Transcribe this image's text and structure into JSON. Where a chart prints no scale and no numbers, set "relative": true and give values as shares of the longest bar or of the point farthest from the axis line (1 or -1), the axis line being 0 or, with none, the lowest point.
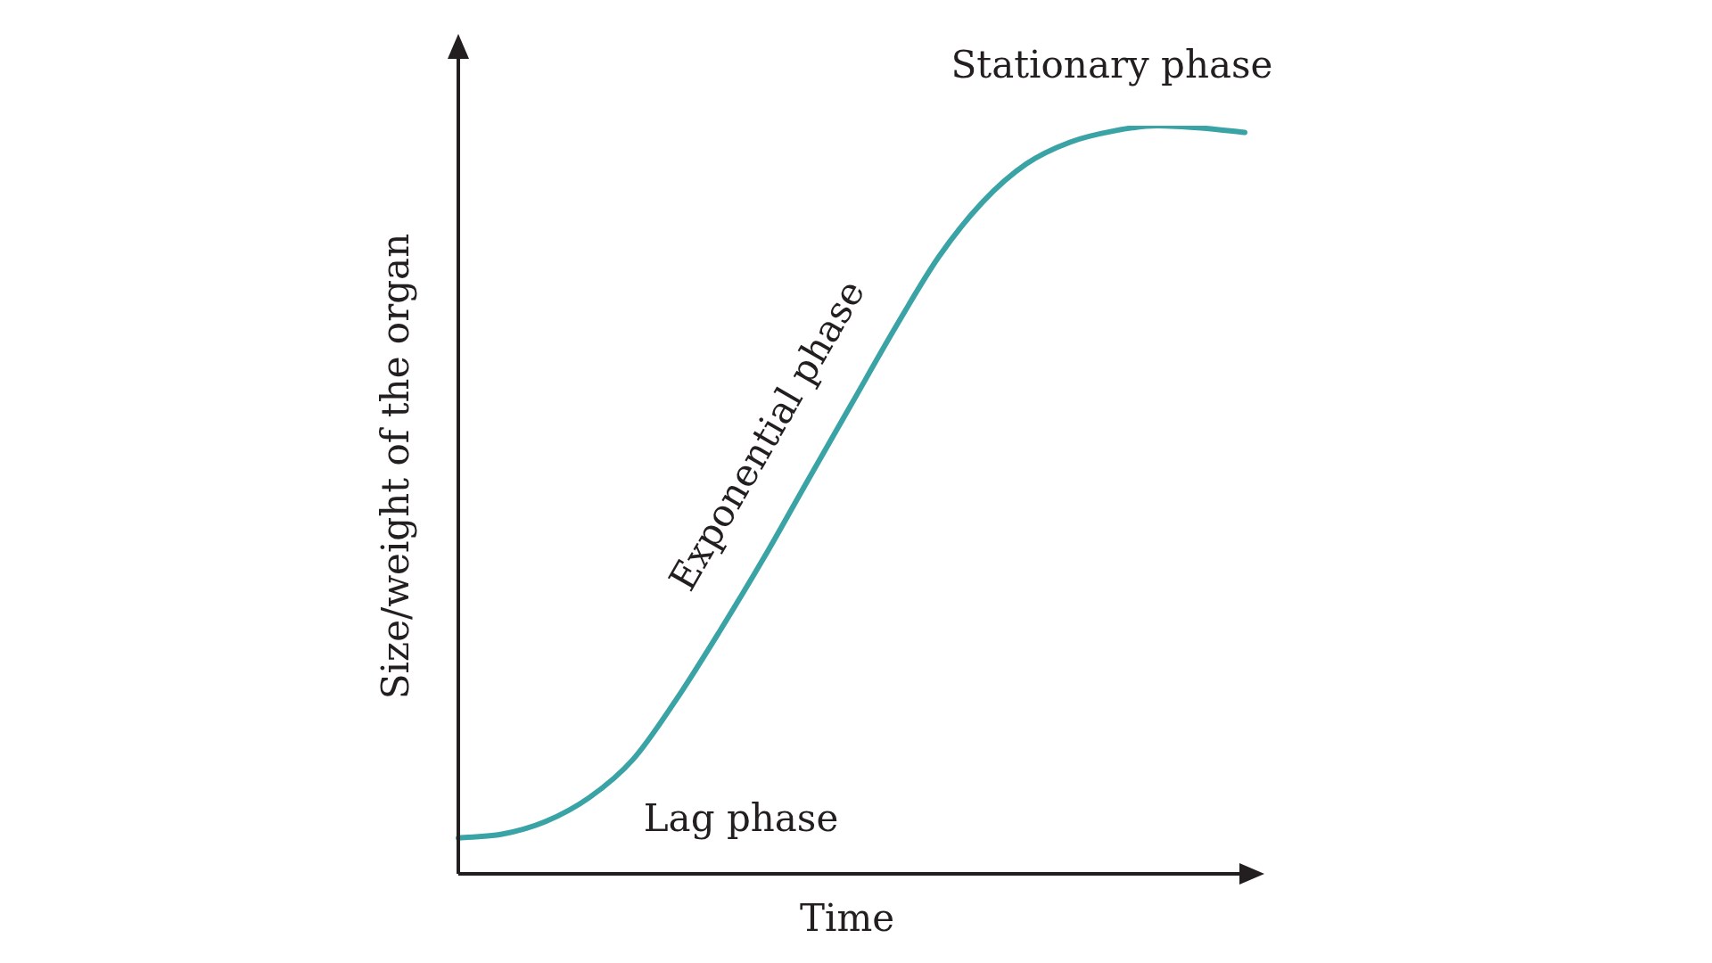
{
  "chart_data": {
    "type": "line",
    "relative": true,
    "xlabel": "Time",
    "ylabel": "Size/weight of the organ",
    "categories": [
      null,
      null,
      null,
      null,
      null,
      null,
      null,
      null,
      null,
      null,
      null,
      null,
      null,
      null,
      null,
      null,
      null,
      null,
      null
    ],
    "series": [
      {
        "color": "#3aa3a6",
        "values": [
          0.048,
          0.053,
          0.07,
          0.102,
          0.153,
          0.234,
          0.326,
          0.423,
          0.526,
          0.628,
          0.73,
          0.825,
          0.898,
          0.949,
          0.978,
          0.993,
          1,
          0.997,
          0.991
        ]
      }
    ],
    "annotations": [
      "Stationary phase",
      "Exponential phase",
      "Lag phase"
    ],
    "legend": false,
    "marker": "none",
    "line_style": "solid"
  }
}
